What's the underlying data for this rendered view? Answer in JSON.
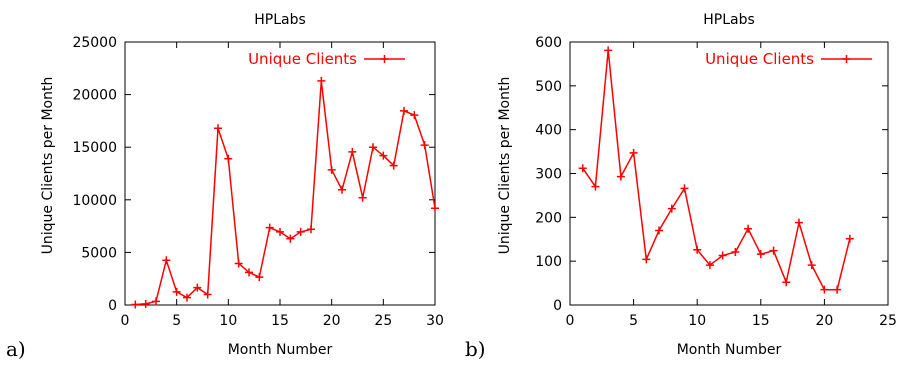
{
  "chart_data": [
    {
      "type": "line",
      "panel_label": "a)",
      "title": "HPLabs",
      "xlabel": "Month Number",
      "ylabel": "Unique Clients per Month",
      "xlim": [
        0,
        30
      ],
      "ylim": [
        0,
        25000
      ],
      "xticks": [
        0,
        5,
        10,
        15,
        20,
        25,
        30
      ],
      "yticks": [
        0,
        5000,
        10000,
        15000,
        20000,
        25000
      ],
      "legend": "top-right",
      "color": "#ff0000",
      "series": [
        {
          "name": "Unique Clients",
          "x": [
            1,
            2,
            3,
            4,
            5,
            6,
            7,
            8,
            9,
            10,
            11,
            12,
            13,
            14,
            15,
            16,
            17,
            18,
            19,
            20,
            21,
            22,
            23,
            24,
            25,
            26,
            27,
            28,
            29,
            30
          ],
          "y": [
            50,
            100,
            350,
            4250,
            1250,
            700,
            1650,
            1000,
            16800,
            13900,
            3950,
            3100,
            2650,
            7350,
            6950,
            6300,
            6950,
            7200,
            21300,
            12850,
            10950,
            14550,
            10200,
            15000,
            14200,
            13250,
            18450,
            18050,
            15200,
            9200
          ]
        }
      ]
    },
    {
      "type": "line",
      "panel_label": "b)",
      "title": "HPLabs",
      "xlabel": "Month Number",
      "ylabel": "Unique Clients per Month",
      "xlim": [
        0,
        25
      ],
      "ylim": [
        0,
        600
      ],
      "xticks": [
        0,
        5,
        10,
        15,
        20,
        25
      ],
      "yticks": [
        0,
        100,
        200,
        300,
        400,
        500,
        600
      ],
      "legend": "top-right",
      "color": "#ff0000",
      "series": [
        {
          "name": "Unique Clients",
          "x": [
            1,
            2,
            3,
            4,
            5,
            6,
            7,
            8,
            9,
            10,
            11,
            12,
            13,
            14,
            15,
            16,
            17,
            18,
            19,
            20,
            21,
            22
          ],
          "y": [
            312,
            270,
            581,
            293,
            347,
            104,
            170,
            220,
            266,
            126,
            91,
            113,
            121,
            174,
            116,
            124,
            52,
            188,
            91,
            35,
            35,
            151
          ]
        }
      ]
    }
  ]
}
